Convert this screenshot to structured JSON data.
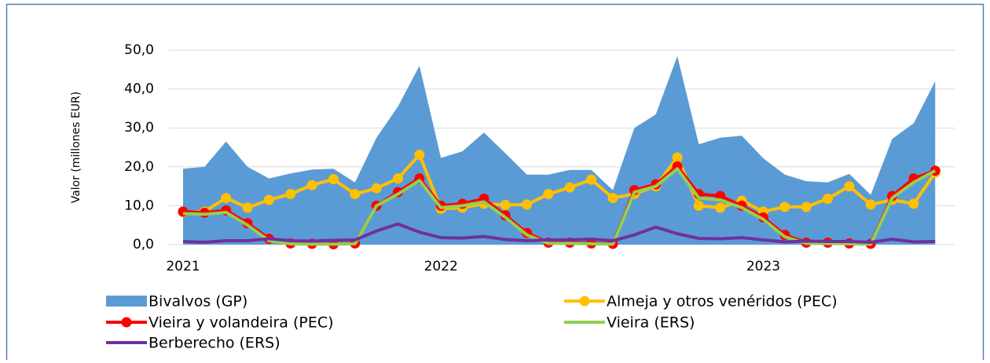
{
  "chart_data": {
    "type": "line",
    "y_label": "Valor (millones EUR)",
    "categories": [
      "2021",
      null,
      null,
      null,
      null,
      null,
      null,
      null,
      null,
      null,
      null,
      null,
      "2022",
      null,
      null,
      null,
      null,
      null,
      null,
      null,
      null,
      null,
      null,
      null,
      null,
      null,
      null,
      "2023",
      null,
      null,
      null,
      null,
      null,
      null,
      null,
      null
    ],
    "ylim": [
      0,
      50
    ],
    "yticks": [
      {
        "value": 0,
        "label": "0,0"
      },
      {
        "value": 10,
        "label": "10,0"
      },
      {
        "value": 20,
        "label": "20,0"
      },
      {
        "value": 30,
        "label": "30,0"
      },
      {
        "value": 40,
        "label": "40,0"
      },
      {
        "value": 50,
        "label": "50,0"
      }
    ],
    "grid": true,
    "series": [
      {
        "name": "Bivalvos (GP)",
        "type": "area",
        "color": "#5b9bd5",
        "values": [
          19.5,
          20,
          26.5,
          20,
          17,
          18.3,
          19.3,
          19.5,
          16,
          27.5,
          35.5,
          46,
          22.3,
          24,
          28.8,
          23.5,
          18,
          18,
          19.2,
          19.2,
          14,
          30,
          33.5,
          48.5,
          25.8,
          27.5,
          28,
          22.2,
          18,
          16.3,
          16,
          18.2,
          12.8,
          27.2,
          31.2,
          42
        ]
      },
      {
        "name": "Almeja y otros venéridos (PEC)",
        "type": "line",
        "markers": true,
        "color": "#ffc000",
        "values": [
          8.3,
          8.5,
          12,
          9.5,
          11.5,
          13,
          15.3,
          16.8,
          13,
          14.5,
          17,
          23.1,
          9.2,
          9.5,
          10.5,
          10.2,
          10.3,
          13,
          14.7,
          16.7,
          12,
          13,
          15,
          22.4,
          10,
          9.5,
          11.3,
          8.5,
          9.7,
          9.7,
          11.8,
          15,
          10.3,
          11.5,
          10.5,
          18.5
        ]
      },
      {
        "name": "Vieira y volandeira (PEC)",
        "type": "line",
        "markers": true,
        "color": "#ff0000",
        "values": [
          8.5,
          8.2,
          8.8,
          5.5,
          1.5,
          0.3,
          0.2,
          0.1,
          0.3,
          10,
          13.5,
          17,
          10,
          10.5,
          11.8,
          7.5,
          3,
          0.5,
          0.5,
          0.3,
          0.2,
          14,
          15.5,
          20.1,
          13,
          12.5,
          10,
          7,
          2.5,
          0.5,
          0.5,
          0.3,
          0.2,
          12.5,
          17,
          19
        ]
      },
      {
        "name": "Vieira (ERS)",
        "type": "line",
        "markers": false,
        "color": "#92d050",
        "values": [
          8,
          7.8,
          8.3,
          5,
          1,
          0.2,
          0.1,
          0.1,
          0.2,
          10,
          13,
          16.5,
          9.5,
          10,
          11,
          7,
          2.5,
          0.3,
          0.3,
          0.2,
          0.1,
          13.5,
          15,
          19.5,
          12,
          11.5,
          9.5,
          6.5,
          2,
          0.3,
          0.3,
          0.2,
          0.1,
          12,
          16,
          19
        ]
      },
      {
        "name": "Berberecho (ERS)",
        "type": "line",
        "markers": false,
        "color": "#7030a0",
        "values": [
          0.8,
          0.6,
          1,
          1,
          1.5,
          1,
          0.9,
          1.1,
          1.2,
          3.5,
          5.3,
          3.2,
          1.8,
          1.7,
          2.1,
          1.3,
          1,
          1.2,
          1.2,
          1.4,
          1,
          2.5,
          4.5,
          2.8,
          1.6,
          1.5,
          1.8,
          1.2,
          0.7,
          0.9,
          0.8,
          0.8,
          0.6,
          1.4,
          0.7,
          0.8
        ]
      }
    ]
  }
}
